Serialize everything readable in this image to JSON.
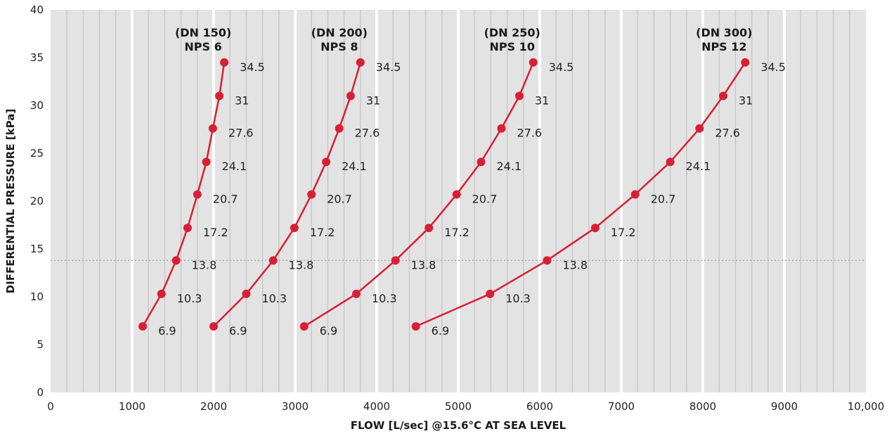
{
  "chart_data": {
    "type": "line",
    "xlabel": "FLOW [L/sec] @15.6°C AT SEA LEVEL",
    "ylabel": "DIFFERENTIAL PRESSURE [kPa]",
    "xlim": [
      0,
      10000
    ],
    "ylim": [
      0,
      40
    ],
    "x_ticks": [
      0,
      1000,
      2000,
      3000,
      4000,
      5000,
      6000,
      7000,
      8000,
      9000,
      10000
    ],
    "x_tick_labels": [
      "0",
      "1000",
      "2000",
      "3000",
      "4000",
      "5000",
      "6000",
      "7000",
      "8000",
      "9000",
      "10,000"
    ],
    "y_ticks": [
      0,
      5,
      10,
      15,
      20,
      25,
      30,
      35,
      40
    ],
    "y_tick_labels": [
      "0",
      "5",
      "10",
      "15",
      "20",
      "25",
      "30",
      "35",
      "40"
    ],
    "minor_x_step": 200,
    "reference_line_y": 13.8,
    "grid": true,
    "legend": "none",
    "colors": {
      "series": "#d81f35",
      "background": "#e3e3e3",
      "minor_grid": "#c9c9c9",
      "major_grid": "#ffffff",
      "reference_line": "#a8a8a8"
    },
    "series": [
      {
        "title": [
          "(DN 150)",
          "NPS 6"
        ],
        "x": [
          1130,
          1360,
          1540,
          1680,
          1800,
          1910,
          1990,
          2070,
          2130
        ],
        "y": [
          6.9,
          10.3,
          13.8,
          17.2,
          20.7,
          24.1,
          27.6,
          31,
          34.5
        ],
        "labels": [
          "6.9",
          "10.3",
          "13.8",
          "17.2",
          "20.7",
          "24.1",
          "27.6",
          "31",
          "34.5"
        ]
      },
      {
        "title": [
          "(DN 200)",
          "NPS 8"
        ],
        "x": [
          2000,
          2400,
          2730,
          2990,
          3200,
          3380,
          3540,
          3680,
          3800
        ],
        "y": [
          6.9,
          10.3,
          13.8,
          17.2,
          20.7,
          24.1,
          27.6,
          31,
          34.5
        ],
        "labels": [
          "6.9",
          "10.3",
          "13.8",
          "17.2",
          "20.7",
          "24.1",
          "27.6",
          "31",
          "34.5"
        ]
      },
      {
        "title": [
          "(DN 250)",
          "NPS 10"
        ],
        "x": [
          3110,
          3750,
          4230,
          4640,
          4980,
          5280,
          5530,
          5750,
          5920
        ],
        "y": [
          6.9,
          10.3,
          13.8,
          17.2,
          20.7,
          24.1,
          27.6,
          31,
          34.5
        ],
        "labels": [
          "6.9",
          "10.3",
          "13.8",
          "17.2",
          "20.7",
          "24.1",
          "27.6",
          "31",
          "34.5"
        ]
      },
      {
        "title": [
          "(DN 300)",
          "NPS 12"
        ],
        "x": [
          4480,
          5390,
          6090,
          6680,
          7170,
          7600,
          7960,
          8250,
          8520
        ],
        "y": [
          6.9,
          10.3,
          13.8,
          17.2,
          20.7,
          24.1,
          27.6,
          31,
          34.5
        ],
        "labels": [
          "6.9",
          "10.3",
          "13.8",
          "17.2",
          "20.7",
          "24.1",
          "27.6",
          "31",
          "34.5"
        ]
      }
    ]
  }
}
